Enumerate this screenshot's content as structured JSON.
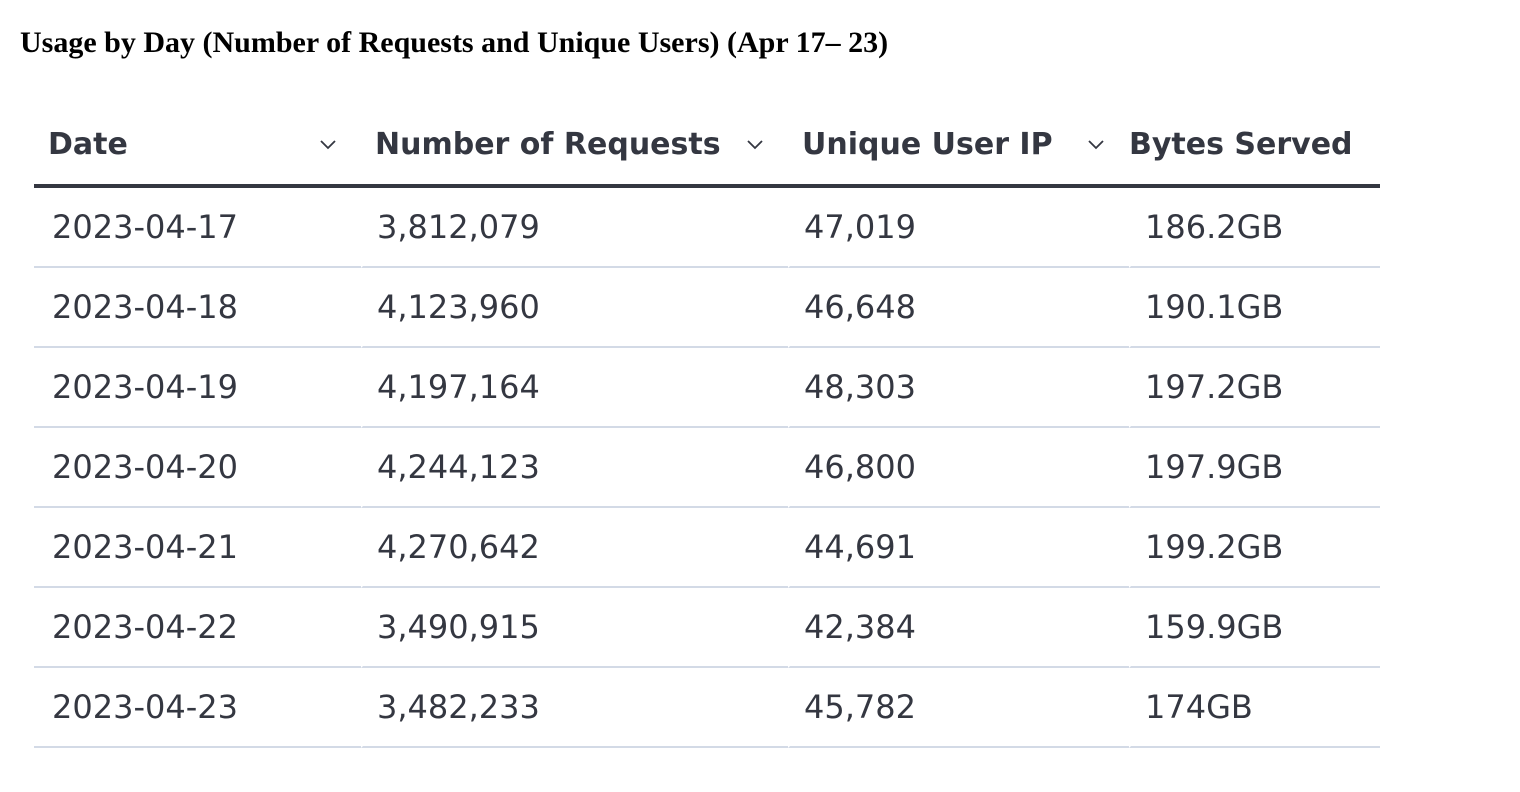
{
  "title": "Usage by Day (Number of Requests and Unique Users) (Apr 17– 23)",
  "table": {
    "columns": [
      {
        "label": "Date",
        "sort_icon": "chevron-down-icon"
      },
      {
        "label": "Number of Requests",
        "sort_icon": "chevron-down-icon"
      },
      {
        "label": "Unique User IP",
        "sort_icon": "chevron-down-icon"
      },
      {
        "label": "Bytes Served"
      }
    ],
    "rows": [
      [
        "2023-04-17",
        "3,812,079",
        "47,019",
        "186.2GB"
      ],
      [
        "2023-04-18",
        "4,123,960",
        "46,648",
        "190.1GB"
      ],
      [
        "2023-04-19",
        "4,197,164",
        "48,303",
        "197.2GB"
      ],
      [
        "2023-04-20",
        "4,244,123",
        "46,800",
        "197.9GB"
      ],
      [
        "2023-04-21",
        "4,270,642",
        "44,691",
        "199.2GB"
      ],
      [
        "2023-04-22",
        "3,490,915",
        "42,384",
        "159.9GB"
      ],
      [
        "2023-04-23",
        "3,482,233",
        "45,782",
        "174GB"
      ]
    ]
  },
  "colors": {
    "text": "#343741",
    "row_divider": "#d3dae6",
    "header_rule": "#343741"
  }
}
